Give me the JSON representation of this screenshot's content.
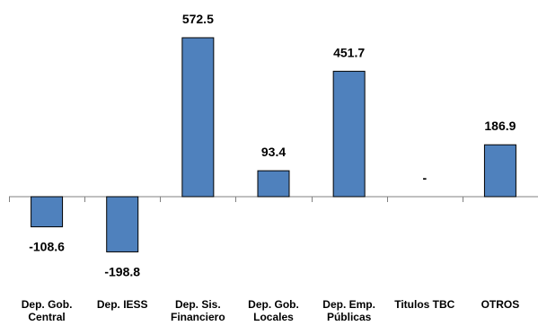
{
  "chart_data": {
    "type": "bar",
    "categories": [
      [
        "Dep. Gob.",
        "Central"
      ],
      [
        "Dep. IESS"
      ],
      [
        "Dep. Sis.",
        "Financiero"
      ],
      [
        "Dep. Gob.",
        "Locales"
      ],
      [
        "Dep. Emp.",
        "Públicas"
      ],
      [
        "Titulos TBC"
      ],
      [
        "OTROS"
      ]
    ],
    "values": [
      -108.6,
      -198.8,
      572.5,
      93.4,
      451.7,
      null,
      186.9
    ],
    "data_labels": [
      "-108.6",
      "-198.8",
      "572.5",
      "93.4",
      "451.7",
      "-",
      "186.9"
    ],
    "title": "",
    "xlabel": "",
    "ylabel": "",
    "ylim": [
      -240,
      640
    ],
    "grid": false,
    "legend": "none",
    "bar_color": "#4f81bd",
    "bar_edge_color": "#000000",
    "axis_color": "#808080"
  }
}
